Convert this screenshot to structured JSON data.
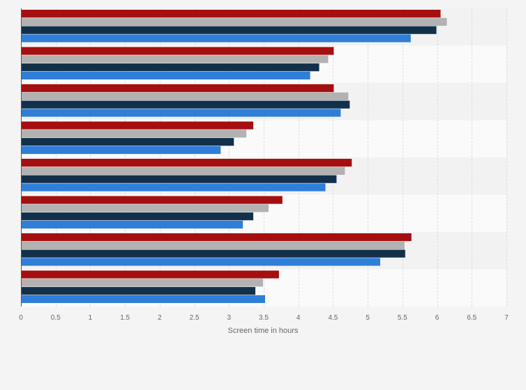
{
  "chart_data": {
    "type": "bar",
    "orientation": "horizontal",
    "xlabel": "Screen time in hours",
    "xlim": [
      0,
      7
    ],
    "xticks": [
      "0",
      "0.5",
      "1",
      "1.5",
      "2",
      "2.5",
      "3",
      "3.5",
      "4",
      "4.5",
      "5",
      "5.5",
      "6",
      "6.5",
      "7"
    ],
    "grid": true,
    "groups": 8,
    "series": [
      {
        "color": "#a50f10",
        "values": [
          6.05,
          4.51,
          4.51,
          3.35,
          4.77,
          3.77,
          5.63,
          3.72
        ]
      },
      {
        "color": "#b2b2b2",
        "values": [
          6.14,
          4.43,
          4.72,
          3.25,
          4.67,
          3.57,
          5.53,
          3.49
        ]
      },
      {
        "color": "#13304b",
        "values": [
          5.99,
          4.3,
          4.74,
          3.07,
          4.55,
          3.35,
          5.54,
          3.38
        ]
      },
      {
        "color": "#2f7ed8",
        "values": [
          5.62,
          4.17,
          4.61,
          2.88,
          4.39,
          3.2,
          5.18,
          3.52
        ]
      }
    ]
  }
}
